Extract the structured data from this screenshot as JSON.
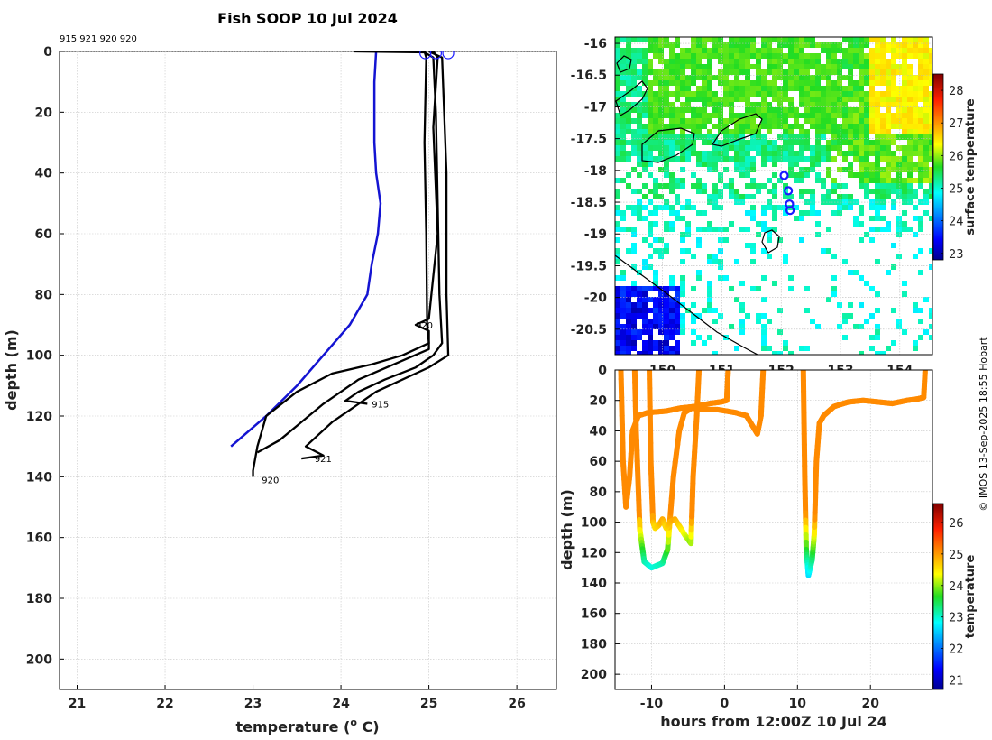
{
  "title": "Fish SOOP 10 Jul 2024",
  "credit": "© IMOS 13-Sep-2025 18:55 Hobart",
  "chart_data": [
    {
      "type": "line",
      "name": "temperature-depth profiles",
      "title": "Fish SOOP 10 Jul 2024",
      "top_note": "915 921 920 920",
      "xlabel": "temperature (",
      "xlabel_sup": "o",
      "xlabel_tail": " C)",
      "ylabel": "depth (m)",
      "xlim": [
        20.8,
        26.45
      ],
      "ylim": [
        210,
        0
      ],
      "xticks": [
        21,
        22,
        23,
        24,
        25,
        26
      ],
      "yticks": [
        0,
        20,
        40,
        60,
        80,
        100,
        120,
        140,
        160,
        180,
        200
      ],
      "reference": {
        "name": "climatology",
        "color": "#1414d2",
        "points": [
          [
            24.4,
            0
          ],
          [
            24.38,
            10
          ],
          [
            24.38,
            20
          ],
          [
            24.38,
            30
          ],
          [
            24.4,
            40
          ],
          [
            24.45,
            50
          ],
          [
            24.42,
            60
          ],
          [
            24.35,
            70
          ],
          [
            24.3,
            80
          ],
          [
            24.1,
            90
          ],
          [
            23.8,
            100
          ],
          [
            23.5,
            110
          ],
          [
            23.15,
            120
          ],
          [
            22.75,
            130
          ]
        ]
      },
      "series": [
        {
          "name": "915",
          "color": "#000000",
          "points": [
            [
              24.15,
              0
            ],
            [
              24.95,
              0.3
            ],
            [
              25.05,
              2
            ],
            [
              25.08,
              20
            ],
            [
              25.1,
              50
            ],
            [
              25.12,
              80
            ],
            [
              25.15,
              96
            ],
            [
              25.05,
              100
            ],
            [
              24.85,
              104
            ],
            [
              24.5,
              108
            ],
            [
              24.2,
              112
            ],
            [
              24.05,
              115
            ],
            [
              24.3,
              116
            ]
          ]
        },
        {
          "name": "921",
          "color": "#000000",
          "points": [
            [
              25.0,
              0
            ],
            [
              25.15,
              2
            ],
            [
              25.2,
              40
            ],
            [
              25.2,
              80
            ],
            [
              25.22,
              100
            ],
            [
              25.0,
              104
            ],
            [
              24.7,
              108
            ],
            [
              24.4,
              112
            ],
            [
              24.1,
              118
            ],
            [
              23.9,
              122
            ],
            [
              23.75,
              126
            ],
            [
              23.6,
              130
            ],
            [
              23.8,
              133
            ],
            [
              23.55,
              134
            ]
          ]
        },
        {
          "name": "920",
          "color": "#000000",
          "points": [
            [
              24.95,
              0
            ],
            [
              24.97,
              2
            ],
            [
              24.95,
              30
            ],
            [
              24.97,
              60
            ],
            [
              24.98,
              90
            ],
            [
              25.0,
              96
            ],
            [
              24.7,
              100
            ],
            [
              24.35,
              103
            ],
            [
              23.9,
              106
            ],
            [
              23.5,
              112
            ],
            [
              23.15,
              120
            ],
            [
              23.05,
              130
            ],
            [
              23.0,
              138
            ],
            [
              23.0,
              140
            ]
          ]
        },
        {
          "name": "920",
          "color": "#000000",
          "points": [
            [
              25.05,
              0
            ],
            [
              25.1,
              2
            ],
            [
              25.05,
              25
            ],
            [
              25.1,
              60
            ],
            [
              25.0,
              88
            ],
            [
              24.85,
              90
            ],
            [
              25.0,
              92
            ],
            [
              25.0,
              98
            ],
            [
              24.6,
              103
            ],
            [
              24.2,
              108
            ],
            [
              23.8,
              116
            ],
            [
              23.55,
              122
            ],
            [
              23.3,
              128
            ],
            [
              23.05,
              132
            ]
          ]
        }
      ],
      "profile_labels": [
        {
          "text": "920",
          "temp": 24.85,
          "depth": 90
        },
        {
          "text": "915",
          "temp": 24.35,
          "depth": 116
        },
        {
          "text": "921",
          "temp": 23.7,
          "depth": 134
        },
        {
          "text": "920",
          "temp": 23.1,
          "depth": 141
        }
      ],
      "surface_markers": [
        24.96,
        25.08,
        25.22
      ]
    },
    {
      "type": "heatmap",
      "name": "surface temperature map",
      "x_range": [
        149.2,
        154.55
      ],
      "y_range": [
        -20.9,
        -15.9
      ],
      "xticks": [
        150,
        151,
        152,
        153,
        154
      ],
      "xtick_labels": [
        "150",
        "151",
        "152",
        "153",
        "154"
      ],
      "yticks": [
        -16,
        -16.5,
        -17,
        -17.5,
        -18,
        -18.5,
        -19,
        -19.5,
        -20,
        -20.5
      ],
      "ytick_labels": [
        "-16",
        "-16.5",
        "-17",
        "-17.5",
        "-18",
        "-18.5",
        "-19",
        "-19.5",
        "-20",
        "-20.5"
      ],
      "stations": [
        [
          152.05,
          -18.08
        ],
        [
          152.12,
          -18.32
        ],
        [
          152.14,
          -18.53
        ],
        [
          152.15,
          -18.63
        ]
      ],
      "colorbar": {
        "label": "surface temperature",
        "min": 22.8,
        "max": 28.5,
        "ticks": [
          23,
          24,
          25,
          26,
          27,
          28
        ],
        "tick_labels": [
          "23",
          "24",
          "25",
          "26",
          "27",
          "28"
        ]
      }
    },
    {
      "type": "scatter",
      "name": "depth vs time",
      "xlabel": "hours from 12:00Z 10 Jul 24",
      "ylabel": "depth (m)",
      "xlim": [
        -15,
        28.5
      ],
      "ylim": [
        210,
        0
      ],
      "xticks": [
        -10,
        0,
        10,
        20
      ],
      "xtick_labels": [
        "-10",
        "0",
        "10",
        "20"
      ],
      "yticks": [
        0,
        20,
        40,
        60,
        80,
        100,
        120,
        140,
        160,
        180,
        200
      ],
      "tracks": [
        {
          "name": "921",
          "points": [
            [
              -14.2,
              0
            ],
            [
              -13.9,
              60
            ],
            [
              -13.5,
              90
            ],
            [
              -13.0,
              70
            ],
            [
              -12.6,
              40
            ],
            [
              -11.8,
              30
            ],
            [
              -10.5,
              28
            ],
            [
              -8,
              27
            ],
            [
              -6,
              25
            ],
            [
              -4,
              24
            ],
            [
              -2,
              22
            ],
            [
              -0.5,
              21
            ],
            [
              0.3,
              20
            ],
            [
              0.5,
              0
            ]
          ]
        },
        {
          "name": "915",
          "points": [
            [
              -12.3,
              0
            ],
            [
              -12.1,
              40
            ],
            [
              -11.6,
              105
            ],
            [
              -11.0,
              126
            ],
            [
              -10,
              130
            ],
            [
              -9,
              128
            ],
            [
              -8.5,
              127
            ],
            [
              -7.8,
              118
            ],
            [
              -7.0,
              70
            ],
            [
              -6.2,
              40
            ],
            [
              -5.5,
              28
            ],
            [
              -4.5,
              25
            ],
            [
              -3,
              26
            ],
            [
              -1,
              26
            ],
            [
              1.5,
              28
            ],
            [
              3,
              30
            ],
            [
              4,
              38
            ],
            [
              4.5,
              42
            ],
            [
              5.0,
              30
            ],
            [
              5.3,
              0
            ]
          ]
        },
        {
          "name": "920",
          "points": [
            [
              -10.3,
              0
            ],
            [
              -10.1,
              60
            ],
            [
              -9.8,
              100
            ],
            [
              -9.5,
              104
            ],
            [
              -9,
              102
            ],
            [
              -8.5,
              98
            ],
            [
              -8,
              104
            ],
            [
              -7.5,
              100
            ],
            [
              -6.8,
              98
            ],
            [
              -6,
              104
            ],
            [
              -5.5,
              108
            ],
            [
              -4.6,
              114
            ],
            [
              -4.3,
              70
            ],
            [
              -3.8,
              30
            ],
            [
              -3.5,
              0
            ]
          ]
        },
        {
          "name": "920",
          "points": [
            [
              10.8,
              0
            ],
            [
              11.0,
              70
            ],
            [
              11.2,
              118
            ],
            [
              11.5,
              135
            ],
            [
              12,
              125
            ],
            [
              12.3,
              108
            ],
            [
              12.6,
              60
            ],
            [
              13,
              35
            ],
            [
              13.6,
              30
            ],
            [
              15,
              24
            ],
            [
              17,
              21
            ],
            [
              19,
              20
            ],
            [
              21,
              21
            ],
            [
              23,
              22
            ],
            [
              25,
              20
            ],
            [
              26.5,
              19
            ],
            [
              27.3,
              18
            ],
            [
              27.5,
              0
            ]
          ]
        }
      ],
      "colorbar": {
        "label": "temperature",
        "min": 20.7,
        "max": 26.6,
        "ticks": [
          21,
          22,
          23,
          24,
          25,
          26
        ],
        "tick_labels": [
          "21",
          "22",
          "23",
          "24",
          "25",
          "26"
        ]
      }
    }
  ]
}
